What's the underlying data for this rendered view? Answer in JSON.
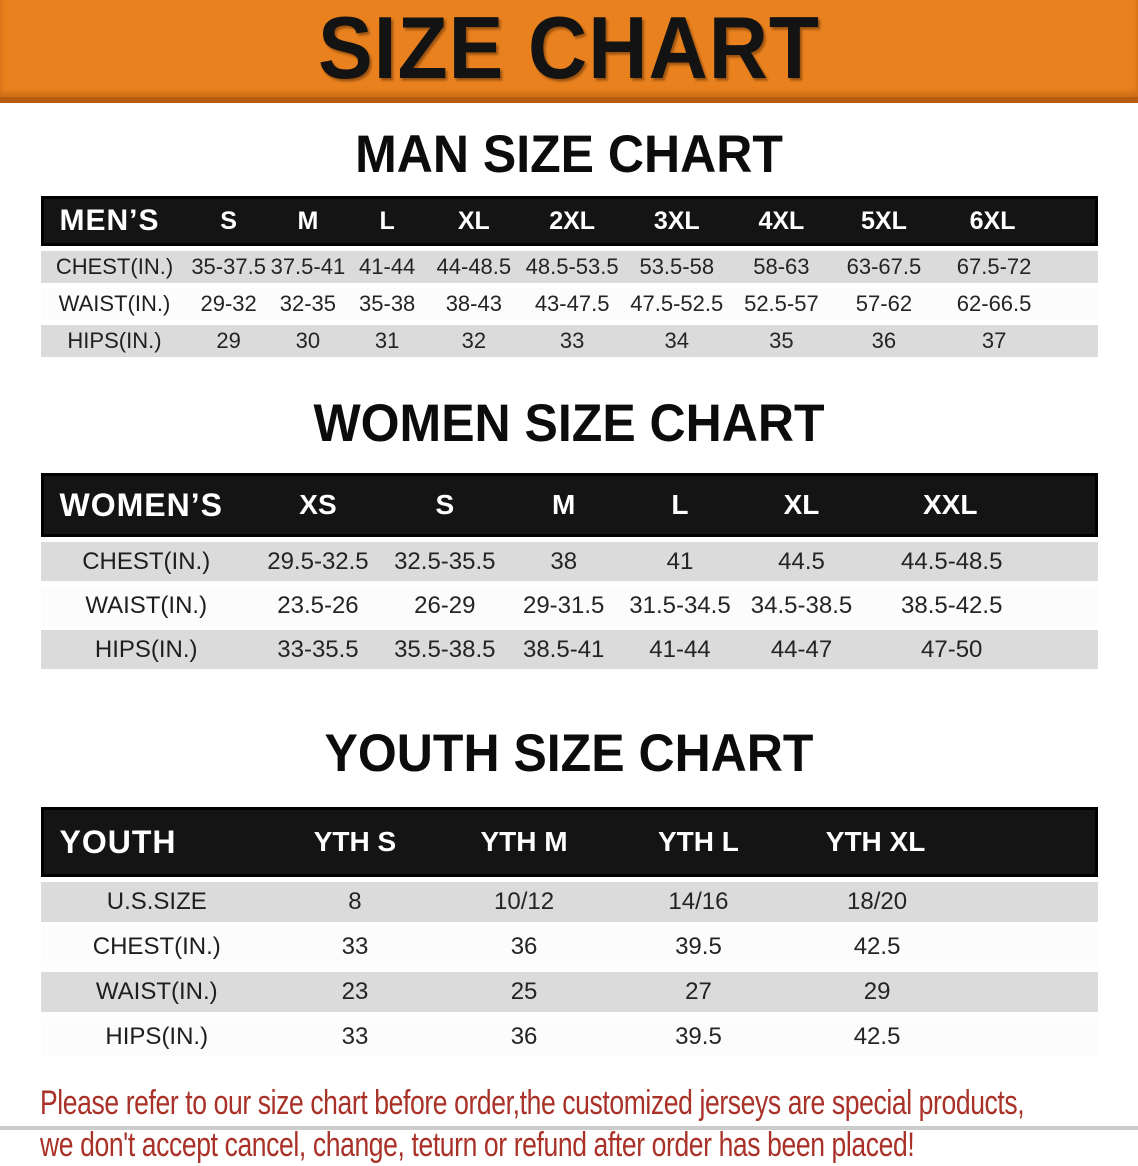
{
  "banner": {
    "title": "SIZE CHART"
  },
  "colors": {
    "banner_orange": "#E8811E",
    "banner_edge": "#B85C12",
    "header_black": "#141414",
    "row_gray": "#DBDBDB",
    "disclaimer_red": "#A93128"
  },
  "sections": [
    {
      "title": "MAN SIZE CHART",
      "table": {
        "corner": "MEN’S",
        "columns": [
          "S",
          "M",
          "L",
          "XL",
          "2XL",
          "3XL",
          "4XL",
          "5XL",
          "6XL"
        ],
        "rows": [
          {
            "label": "CHEST(IN.)",
            "values": [
              "35-37.5",
              "37.5-41",
              "41-44",
              "44-48.5",
              "48.5-53.5",
              "53.5-58",
              "58-63",
              "63-67.5",
              "67.5-72"
            ]
          },
          {
            "label": "WAIST(IN.)",
            "values": [
              "29-32",
              "32-35",
              "35-38",
              "38-43",
              "43-47.5",
              "47.5-52.5",
              "52.5-57",
              "57-62",
              "62-66.5"
            ]
          },
          {
            "label": "HIPS(IN.)",
            "values": [
              "29",
              "30",
              "31",
              "32",
              "33",
              "34",
              "35",
              "36",
              "37"
            ]
          }
        ]
      }
    },
    {
      "title": "WOMEN SIZE CHART",
      "table": {
        "corner": "WOMEN’S",
        "columns": [
          "XS",
          "S",
          "M",
          "L",
          "XL",
          "XXL"
        ],
        "rows": [
          {
            "label": "CHEST(IN.)",
            "values": [
              "29.5-32.5",
              "32.5-35.5",
              "38",
              "41",
              "44.5",
              "44.5-48.5"
            ]
          },
          {
            "label": "WAIST(IN.)",
            "values": [
              "23.5-26",
              "26-29",
              "29-31.5",
              "31.5-34.5",
              "34.5-38.5",
              "38.5-42.5"
            ]
          },
          {
            "label": "HIPS(IN.)",
            "values": [
              "33-35.5",
              "35.5-38.5",
              "38.5-41",
              "41-44",
              "44-47",
              "47-50"
            ]
          }
        ]
      }
    },
    {
      "title": "YOUTH SIZE CHART",
      "table": {
        "corner": "YOUTH",
        "columns": [
          "YTH S",
          "YTH M",
          "YTH L",
          "YTH XL"
        ],
        "rows": [
          {
            "label": "U.S.SIZE",
            "values": [
              "8",
              "10/12",
              "14/16",
              "18/20"
            ]
          },
          {
            "label": "CHEST(IN.)",
            "values": [
              "33",
              "36",
              "39.5",
              "42.5"
            ]
          },
          {
            "label": "WAIST(IN.)",
            "values": [
              "23",
              "25",
              "27",
              "29"
            ]
          },
          {
            "label": "HIPS(IN.)",
            "values": [
              "33",
              "36",
              "39.5",
              "42.5"
            ]
          }
        ]
      }
    }
  ],
  "disclaimer": {
    "lines": [
      "Please refer to our size chart before order,the customized jerseys are special products,",
      "we don't accept cancel, change, teturn or refund after order has been placed!"
    ]
  }
}
